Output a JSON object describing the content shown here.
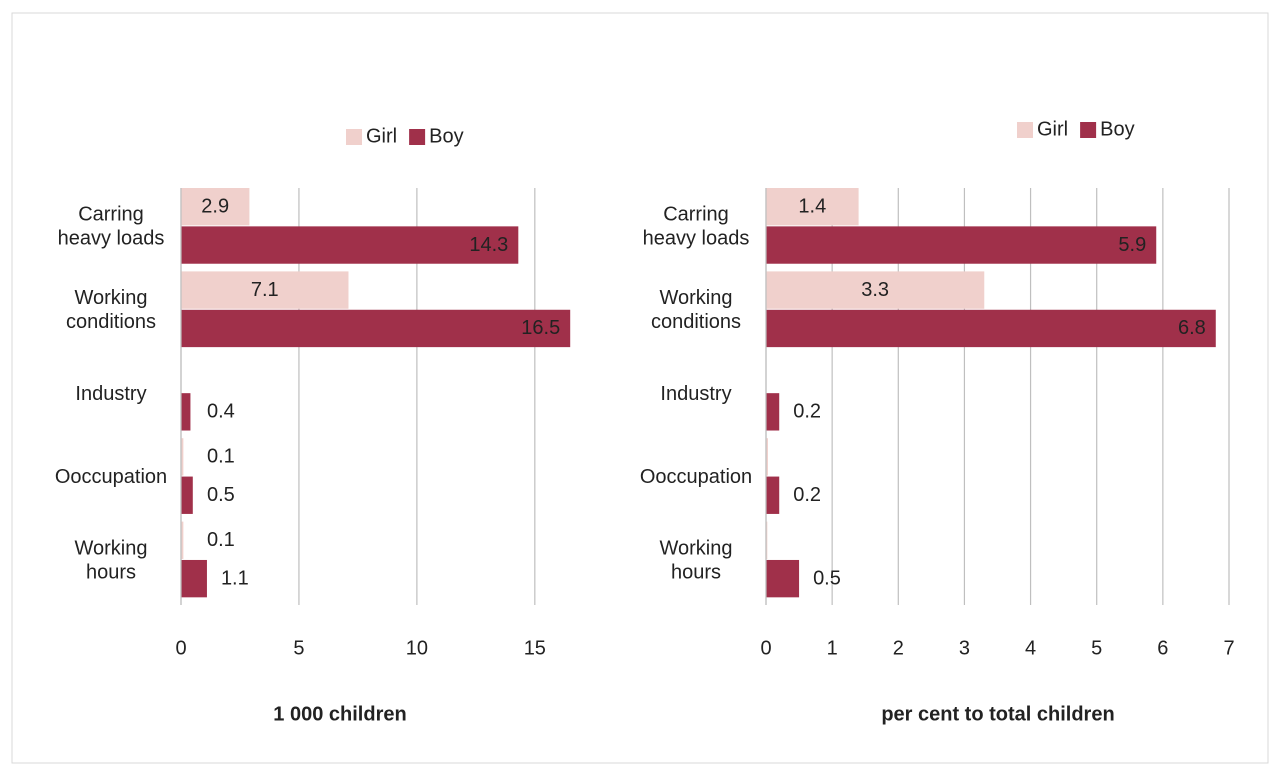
{
  "chart_data": [
    {
      "type": "barh",
      "xlabel": "1 000 children",
      "categories": [
        "Carring\nheavy loads",
        "Working\nconditions",
        "Industry",
        "Ooccupation",
        "Working\nhours"
      ],
      "series": [
        {
          "name": "Girl",
          "color": "#f0d0cc",
          "values": [
            2.9,
            7.1,
            null,
            0.1,
            0.1
          ]
        },
        {
          "name": "Boy",
          "color": "#a0304a",
          "values": [
            14.3,
            16.5,
            0.4,
            0.5,
            1.1
          ]
        }
      ],
      "xlim": [
        0,
        17
      ],
      "xticks": [
        0,
        5,
        10,
        15
      ],
      "grid": true,
      "legend": "top"
    },
    {
      "type": "barh",
      "xlabel": "per cent to total children",
      "categories": [
        "Carring\nheavy loads",
        "Working\nconditions",
        "Industry",
        "Ooccupation",
        "Working\nhours"
      ],
      "series": [
        {
          "name": "Girl",
          "color": "#f0d0cc",
          "values": [
            1.4,
            3.3,
            null,
            0.03,
            0.02
          ],
          "value_labels": [
            "1.4",
            "3.3",
            null,
            null,
            null
          ]
        },
        {
          "name": "Boy",
          "color": "#a0304a",
          "values": [
            5.9,
            6.8,
            0.2,
            0.2,
            0.5
          ]
        }
      ],
      "xlim": [
        0,
        7
      ],
      "xticks": [
        0,
        1,
        2,
        3,
        4,
        5,
        6,
        7
      ],
      "grid": true,
      "legend": "top"
    }
  ]
}
